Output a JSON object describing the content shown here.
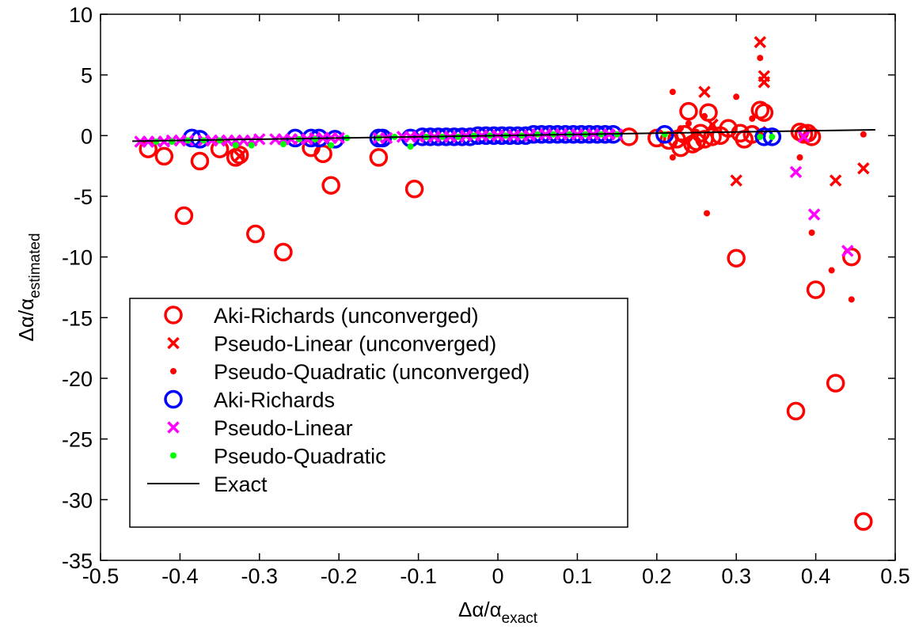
{
  "chart_data": {
    "type": "scatter",
    "title": "",
    "xlabel": {
      "base": "Δα/α",
      "sub": "exact"
    },
    "ylabel": {
      "base": "Δα/α",
      "sub": "estimated"
    },
    "xlim": [
      -0.5,
      0.5
    ],
    "ylim": [
      -35,
      10
    ],
    "x_ticks": [
      -0.5,
      -0.4,
      -0.3,
      -0.2,
      -0.1,
      0,
      0.1,
      0.2,
      0.3,
      0.4,
      0.5
    ],
    "x_tick_labels": [
      "-0.5",
      "-0.4",
      "-0.3",
      "-0.2",
      "-0.1",
      "0",
      "0.1",
      "0.2",
      "0.3",
      "0.4",
      "0.5"
    ],
    "y_ticks": [
      10,
      5,
      0,
      -5,
      -10,
      -15,
      -20,
      -25,
      -30,
      -35
    ],
    "y_tick_labels": [
      "10",
      "5",
      "0",
      "-5",
      "-10",
      "-15",
      "-20",
      "-25",
      "-30",
      "-35"
    ],
    "grid": false,
    "legend_position": "lower-left",
    "series": [
      {
        "name": "Aki-Richards (unconverged)",
        "marker": "circle",
        "color": "#ff0000",
        "points": [
          [
            -0.44,
            -1.1
          ],
          [
            -0.42,
            -1.7
          ],
          [
            -0.395,
            -6.6
          ],
          [
            -0.375,
            -2.1
          ],
          [
            -0.35,
            -1.1
          ],
          [
            -0.33,
            -1.8
          ],
          [
            -0.325,
            -1.6
          ],
          [
            -0.305,
            -8.1
          ],
          [
            -0.27,
            -9.6
          ],
          [
            -0.235,
            -1.0
          ],
          [
            -0.22,
            -1.5
          ],
          [
            -0.21,
            -4.1
          ],
          [
            -0.15,
            -1.8
          ],
          [
            -0.105,
            -4.4
          ],
          [
            0.165,
            -0.1
          ],
          [
            0.2,
            -0.2
          ],
          [
            0.215,
            -0.4
          ],
          [
            0.225,
            -0.3
          ],
          [
            0.23,
            -1.0
          ],
          [
            0.235,
            0.1
          ],
          [
            0.24,
            2.0
          ],
          [
            0.245,
            -0.7
          ],
          [
            0.25,
            -0.5
          ],
          [
            0.255,
            0.2
          ],
          [
            0.26,
            -0.3
          ],
          [
            0.265,
            1.9
          ],
          [
            0.27,
            -0.1
          ],
          [
            0.28,
            0.0
          ],
          [
            0.29,
            0.6
          ],
          [
            0.3,
            -10.1
          ],
          [
            0.305,
            0.2
          ],
          [
            0.31,
            -0.3
          ],
          [
            0.32,
            0.1
          ],
          [
            0.33,
            2.1
          ],
          [
            0.335,
            1.9
          ],
          [
            0.375,
            -22.7
          ],
          [
            0.38,
            0.3
          ],
          [
            0.385,
            0.1
          ],
          [
            0.39,
            0.2
          ],
          [
            0.395,
            -0.1
          ],
          [
            0.4,
            -12.7
          ],
          [
            0.425,
            -20.4
          ],
          [
            0.445,
            -10.0
          ],
          [
            0.46,
            -31.8
          ]
        ]
      },
      {
        "name": "Pseudo-Linear (unconverged)",
        "marker": "x",
        "color": "#ff0000",
        "points": [
          [
            -0.325,
            -1.7
          ],
          [
            0.26,
            3.6
          ],
          [
            0.3,
            -3.7
          ],
          [
            0.33,
            7.7
          ],
          [
            0.335,
            4.4
          ],
          [
            0.335,
            4.9
          ],
          [
            0.425,
            -3.7
          ],
          [
            0.46,
            -2.7
          ],
          [
            0.33,
            0.3
          ],
          [
            0.27,
            0.9
          ]
        ]
      },
      {
        "name": "Pseudo-Quadratic (unconverged)",
        "marker": "dot",
        "color": "#ff0000",
        "points": [
          [
            0.22,
            3.6
          ],
          [
            0.22,
            -1.8
          ],
          [
            0.23,
            0.6
          ],
          [
            0.24,
            1.0
          ],
          [
            0.26,
            1.6
          ],
          [
            0.263,
            -6.4
          ],
          [
            0.27,
            0.8
          ],
          [
            0.3,
            3.2
          ],
          [
            0.33,
            6.4
          ],
          [
            0.32,
            1.4
          ],
          [
            0.38,
            -1.8
          ],
          [
            0.395,
            -8.0
          ],
          [
            0.42,
            -11.1
          ],
          [
            0.445,
            -13.5
          ],
          [
            0.46,
            0.1
          ],
          [
            0.25,
            0.3
          ]
        ]
      },
      {
        "name": "Aki-Richards",
        "marker": "circle",
        "color": "#0000ff",
        "points": [
          [
            -0.385,
            -0.2
          ],
          [
            -0.375,
            -0.3
          ],
          [
            -0.255,
            -0.2
          ],
          [
            -0.235,
            -0.2
          ],
          [
            -0.225,
            -0.2
          ],
          [
            -0.205,
            -0.3
          ],
          [
            -0.15,
            -0.2
          ],
          [
            -0.145,
            -0.2
          ],
          [
            -0.11,
            -0.2
          ],
          [
            -0.095,
            -0.1
          ],
          [
            -0.085,
            -0.1
          ],
          [
            -0.075,
            -0.1
          ],
          [
            -0.065,
            -0.1
          ],
          [
            -0.055,
            -0.1
          ],
          [
            -0.045,
            -0.1
          ],
          [
            -0.035,
            -0.1
          ],
          [
            -0.025,
            0.0
          ],
          [
            -0.015,
            0.0
          ],
          [
            -0.005,
            0.0
          ],
          [
            0.005,
            0.0
          ],
          [
            0.015,
            0.0
          ],
          [
            0.025,
            0.0
          ],
          [
            0.035,
            0.0
          ],
          [
            0.045,
            0.1
          ],
          [
            0.055,
            0.1
          ],
          [
            0.065,
            0.1
          ],
          [
            0.075,
            0.1
          ],
          [
            0.085,
            0.1
          ],
          [
            0.095,
            0.1
          ],
          [
            0.105,
            0.1
          ],
          [
            0.115,
            0.1
          ],
          [
            0.125,
            0.1
          ],
          [
            0.135,
            0.1
          ],
          [
            0.145,
            0.1
          ],
          [
            0.21,
            0.1
          ],
          [
            0.335,
            -0.1
          ],
          [
            0.345,
            -0.1
          ]
        ]
      },
      {
        "name": "Pseudo-Linear",
        "marker": "x",
        "color": "#ff00ff",
        "points": [
          [
            -0.45,
            -0.5
          ],
          [
            -0.44,
            -0.5
          ],
          [
            -0.43,
            -0.5
          ],
          [
            -0.42,
            -0.5
          ],
          [
            -0.41,
            -0.4
          ],
          [
            -0.4,
            -0.4
          ],
          [
            -0.39,
            -0.4
          ],
          [
            -0.37,
            -0.4
          ],
          [
            -0.36,
            -0.4
          ],
          [
            -0.35,
            -0.4
          ],
          [
            -0.34,
            -0.4
          ],
          [
            -0.33,
            -0.4
          ],
          [
            -0.32,
            -0.4
          ],
          [
            -0.31,
            -0.4
          ],
          [
            -0.3,
            -0.3
          ],
          [
            -0.28,
            -0.3
          ],
          [
            -0.27,
            -0.3
          ],
          [
            -0.26,
            -0.3
          ],
          [
            -0.25,
            -0.3
          ],
          [
            -0.24,
            -0.3
          ],
          [
            -0.23,
            -0.2
          ],
          [
            -0.22,
            -0.2
          ],
          [
            -0.21,
            -0.2
          ],
          [
            -0.2,
            -0.2
          ],
          [
            -0.15,
            -0.2
          ],
          [
            -0.14,
            -0.2
          ],
          [
            -0.12,
            -0.1
          ],
          [
            -0.11,
            -0.1
          ],
          [
            -0.1,
            -0.1
          ],
          [
            -0.09,
            -0.1
          ],
          [
            -0.08,
            -0.1
          ],
          [
            -0.07,
            -0.1
          ],
          [
            -0.06,
            -0.1
          ],
          [
            -0.05,
            -0.1
          ],
          [
            -0.04,
            0.0
          ],
          [
            -0.03,
            0.0
          ],
          [
            -0.02,
            0.0
          ],
          [
            -0.01,
            0.0
          ],
          [
            0.0,
            0.0
          ],
          [
            0.01,
            0.0
          ],
          [
            0.02,
            0.0
          ],
          [
            0.03,
            0.0
          ],
          [
            0.04,
            0.0
          ],
          [
            0.05,
            0.1
          ],
          [
            0.06,
            0.1
          ],
          [
            0.07,
            0.1
          ],
          [
            0.08,
            0.1
          ],
          [
            0.09,
            0.1
          ],
          [
            0.1,
            0.1
          ],
          [
            0.11,
            0.1
          ],
          [
            0.12,
            0.1
          ],
          [
            0.13,
            0.1
          ],
          [
            0.14,
            0.1
          ],
          [
            0.15,
            0.1
          ],
          [
            0.375,
            -3.0
          ],
          [
            0.385,
            -0.1
          ],
          [
            0.398,
            -6.5
          ],
          [
            0.44,
            -9.5
          ]
        ]
      },
      {
        "name": "Pseudo-Quadratic",
        "marker": "dot",
        "color": "#00ff00",
        "points": [
          [
            -0.43,
            -0.5
          ],
          [
            -0.41,
            -0.5
          ],
          [
            -0.39,
            -0.4
          ],
          [
            -0.37,
            -0.4
          ],
          [
            -0.35,
            -0.4
          ],
          [
            -0.33,
            -0.8
          ],
          [
            -0.31,
            -0.8
          ],
          [
            -0.27,
            -0.7
          ],
          [
            -0.25,
            -0.3
          ],
          [
            -0.23,
            -0.3
          ],
          [
            -0.21,
            -0.8
          ],
          [
            -0.19,
            -0.2
          ],
          [
            -0.15,
            -0.2
          ],
          [
            -0.13,
            -0.1
          ],
          [
            -0.11,
            -0.9
          ],
          [
            -0.09,
            -0.1
          ],
          [
            -0.07,
            -0.1
          ],
          [
            -0.05,
            -0.1
          ],
          [
            -0.03,
            0.0
          ],
          [
            -0.01,
            0.0
          ],
          [
            0.01,
            0.0
          ],
          [
            0.03,
            0.0
          ],
          [
            0.05,
            0.1
          ],
          [
            0.07,
            0.1
          ],
          [
            0.09,
            0.1
          ],
          [
            0.11,
            0.1
          ],
          [
            0.13,
            0.1
          ],
          [
            0.15,
            0.1
          ],
          [
            0.21,
            0.1
          ],
          [
            0.33,
            -0.1
          ],
          [
            0.345,
            -0.1
          ]
        ]
      },
      {
        "name": "Exact",
        "marker": "line",
        "color": "#000000",
        "points": [
          [
            -0.46,
            -0.46
          ],
          [
            0.475,
            0.475
          ]
        ]
      }
    ]
  }
}
